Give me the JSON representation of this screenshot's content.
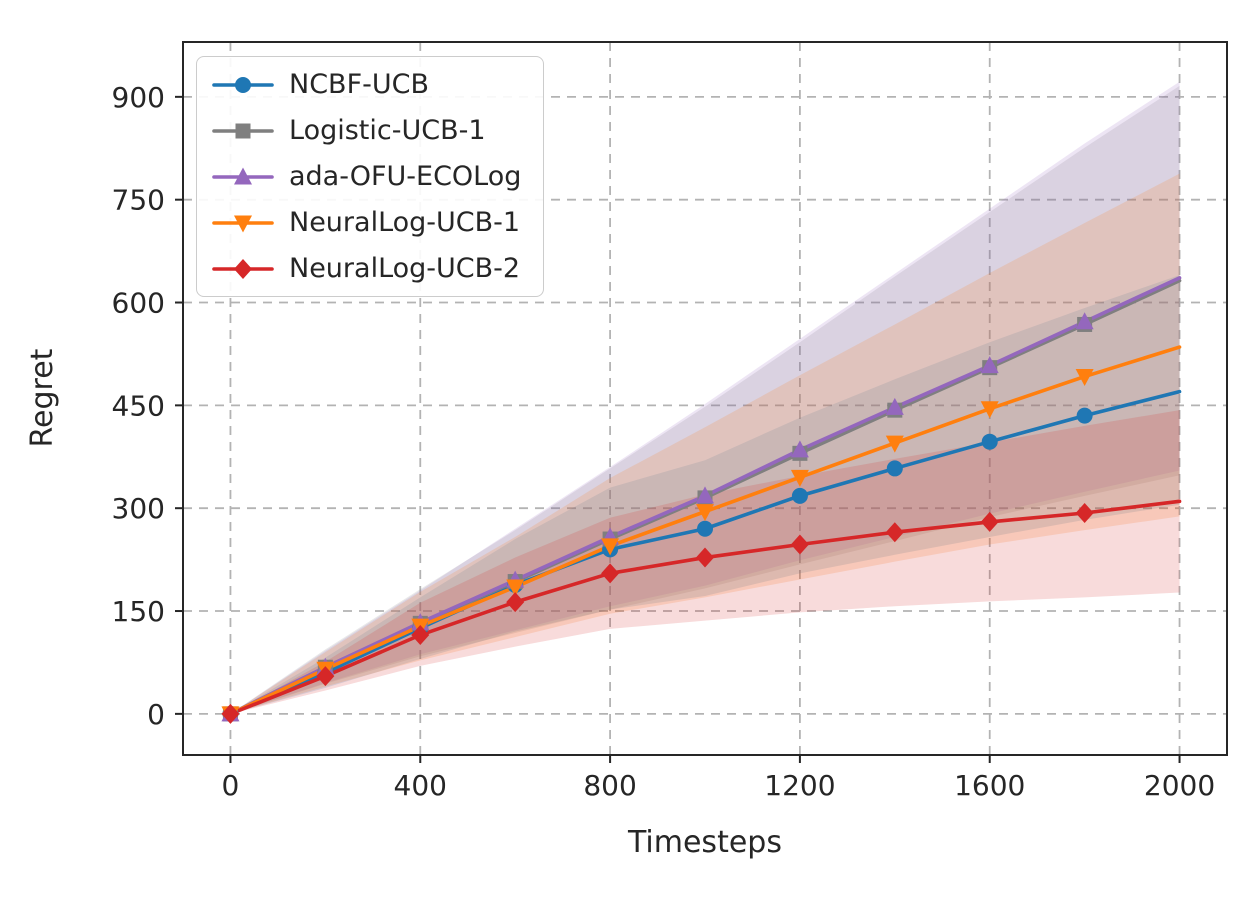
{
  "chart_data": {
    "type": "line",
    "title": "",
    "xlabel": "Timesteps",
    "ylabel": "Regret",
    "grid": true,
    "legend_position": "upper left",
    "x": [
      0,
      200,
      400,
      600,
      800,
      1000,
      1200,
      1400,
      1600,
      1800,
      2000
    ],
    "xticks": [
      0,
      400,
      800,
      1200,
      1600,
      2000
    ],
    "yticks": [
      0,
      150,
      300,
      450,
      600,
      750,
      900
    ],
    "xlim": [
      -100,
      2100
    ],
    "ylim": [
      -60,
      980
    ],
    "series": [
      {
        "name": "NCBF-UCB",
        "color": "#1f77b4",
        "marker": "circle",
        "values": [
          0,
          60,
          125,
          188,
          240,
          270,
          318,
          358,
          397,
          435,
          470
        ],
        "band_lower": [
          0,
          38,
          80,
          120,
          152,
          172,
          205,
          232,
          258,
          283,
          305
        ],
        "band_upper": [
          0,
          82,
          170,
          255,
          330,
          370,
          432,
          488,
          542,
          592,
          640
        ]
      },
      {
        "name": "Logistic-UCB-1",
        "color": "#7f7f7f",
        "marker": "square",
        "values": [
          0,
          68,
          132,
          193,
          255,
          315,
          380,
          443,
          505,
          568,
          632
        ],
        "band_lower": [
          0,
          44,
          84,
          118,
          152,
          183,
          218,
          252,
          287,
          318,
          348
        ],
        "band_upper": [
          0,
          94,
          182,
          268,
          358,
          448,
          542,
          638,
          732,
          826,
          916
        ]
      },
      {
        "name": "ada-OFU-ECOLog",
        "color": "#9467bd",
        "marker": "triangle-up",
        "values": [
          0,
          68,
          133,
          195,
          258,
          318,
          385,
          447,
          508,
          572,
          636
        ],
        "band_lower": [
          0,
          45,
          87,
          122,
          157,
          187,
          224,
          258,
          292,
          324,
          355
        ],
        "band_upper": [
          0,
          92,
          180,
          270,
          360,
          452,
          547,
          642,
          737,
          832,
          922
        ]
      },
      {
        "name": "NeuralLog-UCB-1",
        "color": "#ff7f0e",
        "marker": "triangle-down",
        "values": [
          0,
          65,
          128,
          185,
          245,
          295,
          345,
          395,
          445,
          492,
          535
        ],
        "band_lower": [
          0,
          40,
          78,
          112,
          146,
          170,
          196,
          222,
          247,
          268,
          288
        ],
        "band_upper": [
          0,
          90,
          178,
          258,
          344,
          418,
          494,
          568,
          643,
          716,
          788
        ]
      },
      {
        "name": "NeuralLog-UCB-2",
        "color": "#d62728",
        "marker": "diamond",
        "values": [
          0,
          55,
          115,
          163,
          205,
          228,
          247,
          265,
          280,
          293,
          310
        ],
        "band_lower": [
          0,
          34,
          70,
          98,
          124,
          136,
          148,
          157,
          164,
          170,
          177
        ],
        "band_upper": [
          0,
          76,
          162,
          228,
          286,
          320,
          347,
          372,
          396,
          420,
          443
        ]
      }
    ],
    "band_opacity": 0.17,
    "style": {
      "grid_color": "#b3b3b3",
      "spine_color": "#262626",
      "text_color": "#262626",
      "background": "#ffffff"
    }
  }
}
